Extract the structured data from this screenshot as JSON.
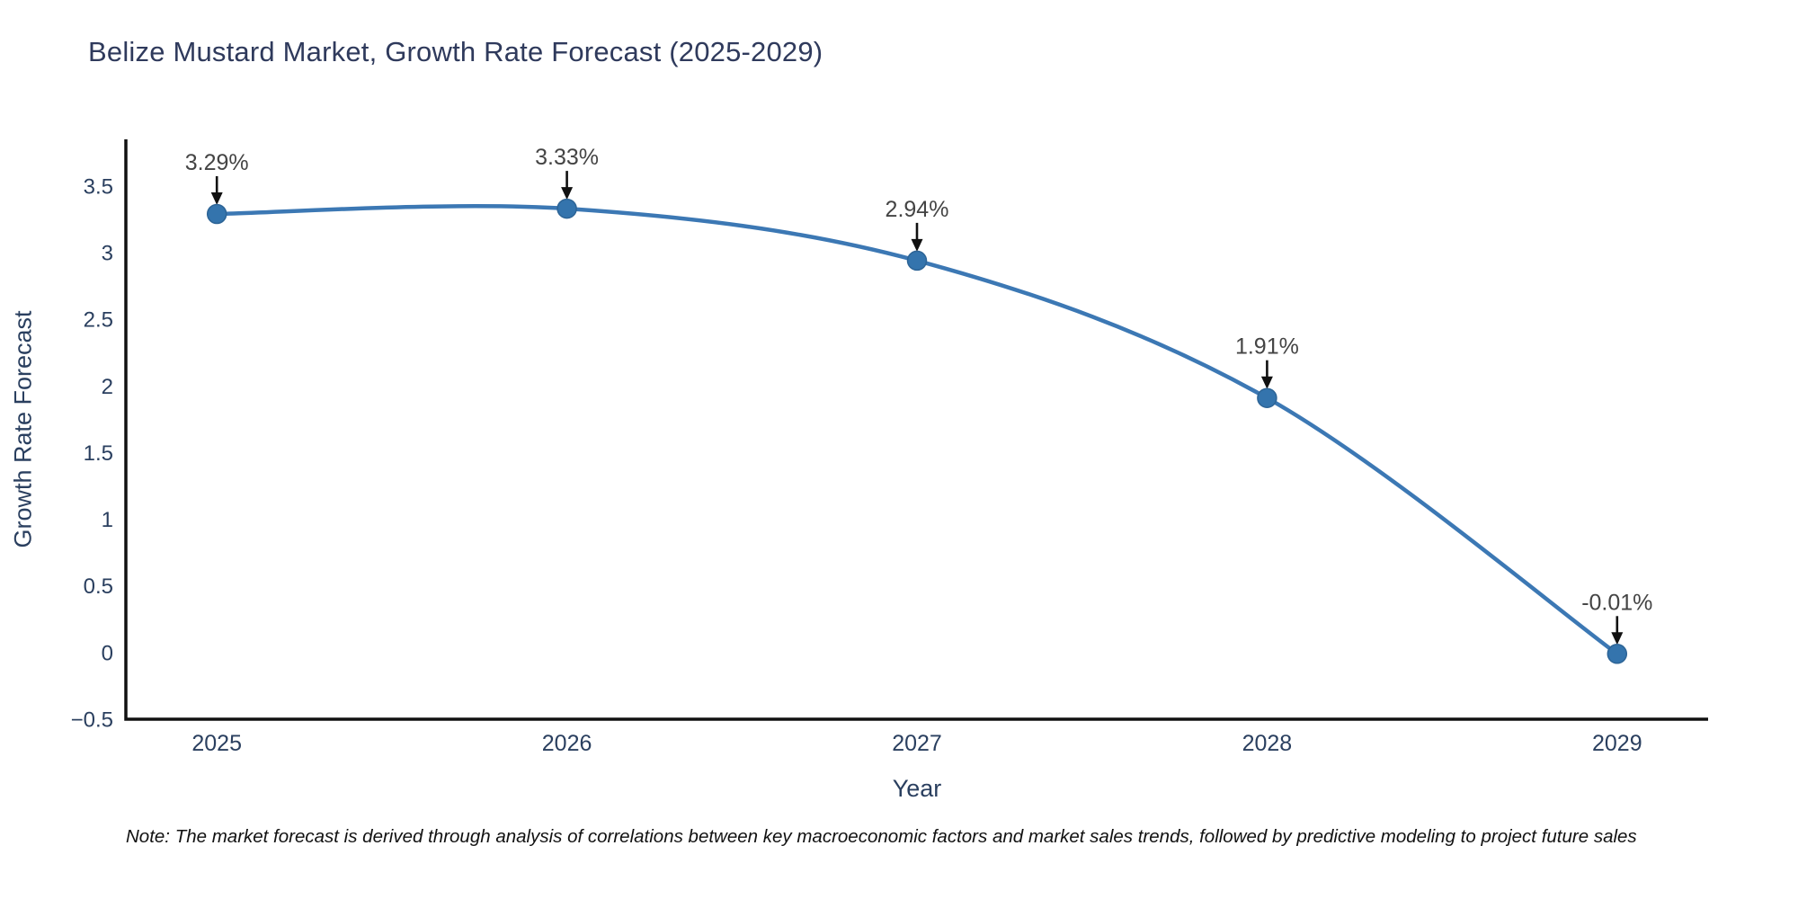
{
  "chart_data": {
    "type": "line",
    "title": "Belize Mustard Market, Growth Rate Forecast (2025-2029)",
    "xlabel": "Year",
    "ylabel": "Growth Rate Forecast",
    "x": [
      2025,
      2026,
      2027,
      2028,
      2029
    ],
    "x_tick_labels": [
      "2025",
      "2026",
      "2027",
      "2028",
      "2029"
    ],
    "series": [
      {
        "name": "Growth Rate Forecast",
        "values": [
          3.29,
          3.33,
          2.94,
          1.91,
          -0.01
        ]
      }
    ],
    "point_labels": [
      "3.29%",
      "3.33%",
      "2.94%",
      "1.91%",
      "-0.01%"
    ],
    "yticks": [
      -0.5,
      0,
      0.5,
      1,
      1.5,
      2,
      2.5,
      3,
      3.5
    ],
    "ytick_labels": [
      "−0.5",
      "0",
      "0.5",
      "1",
      "1.5",
      "2",
      "2.5",
      "3",
      "3.5"
    ],
    "ylim": [
      -0.5,
      3.85
    ],
    "xlim": [
      2024.74,
      2029.26
    ],
    "grid": false,
    "legend": "none",
    "line_shape": "spline",
    "colors": {
      "line": "#3c78b4",
      "marker": "#3474ad",
      "marker_edge": "#2d6496",
      "axis": "#111111",
      "tick_label": "#2a3f5f",
      "annotation": "#444444",
      "arrow": "#111111"
    }
  },
  "footnote": "Note: The market forecast is derived through analysis of correlations between key macroeconomic factors and market sales trends, followed by predictive modeling to project future sales"
}
